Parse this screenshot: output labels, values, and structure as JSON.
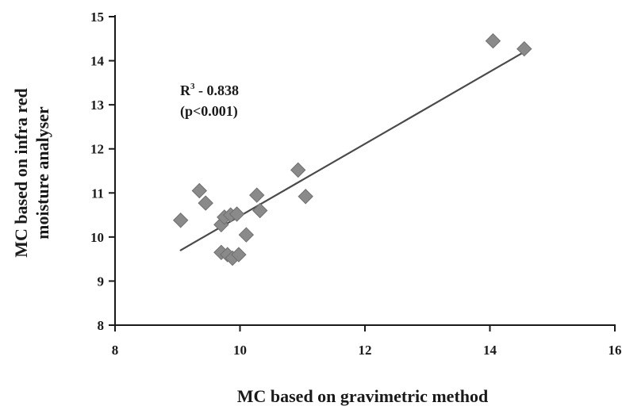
{
  "chart_data": {
    "type": "scatter",
    "title": "",
    "xlabel": "MC based on gravimetric method",
    "ylabel_lines": [
      "MC based on infra red",
      "moisture analyser"
    ],
    "xlim": [
      8,
      16
    ],
    "ylim": [
      8,
      15
    ],
    "x_ticks": [
      "8",
      "10",
      "12",
      "14",
      "16"
    ],
    "y_ticks": [
      "8",
      "9",
      "10",
      "11",
      "12",
      "13",
      "14",
      "15"
    ],
    "grid": false,
    "legend": "none",
    "annotation": {
      "r_label": "R",
      "r_sup": "3",
      "r_value": " - 0.838",
      "p_text": "(p<0.001)"
    },
    "marker_color": "#8a8a8a",
    "trendline_color": "#4a4a4a",
    "trendline": {
      "x": [
        9.05,
        14.55
      ],
      "y": [
        9.7,
        14.2
      ]
    },
    "points": [
      {
        "x": 9.05,
        "y": 10.38
      },
      {
        "x": 9.35,
        "y": 11.05
      },
      {
        "x": 9.45,
        "y": 10.77
      },
      {
        "x": 9.7,
        "y": 10.28
      },
      {
        "x": 9.75,
        "y": 10.45
      },
      {
        "x": 9.85,
        "y": 10.5
      },
      {
        "x": 9.95,
        "y": 10.52
      },
      {
        "x": 9.7,
        "y": 9.65
      },
      {
        "x": 9.8,
        "y": 9.6
      },
      {
        "x": 9.88,
        "y": 9.52
      },
      {
        "x": 9.98,
        "y": 9.6
      },
      {
        "x": 10.1,
        "y": 10.05
      },
      {
        "x": 10.27,
        "y": 10.95
      },
      {
        "x": 10.32,
        "y": 10.6
      },
      {
        "x": 10.93,
        "y": 11.52
      },
      {
        "x": 11.05,
        "y": 10.92
      },
      {
        "x": 14.05,
        "y": 14.45
      },
      {
        "x": 14.55,
        "y": 14.27
      }
    ]
  }
}
